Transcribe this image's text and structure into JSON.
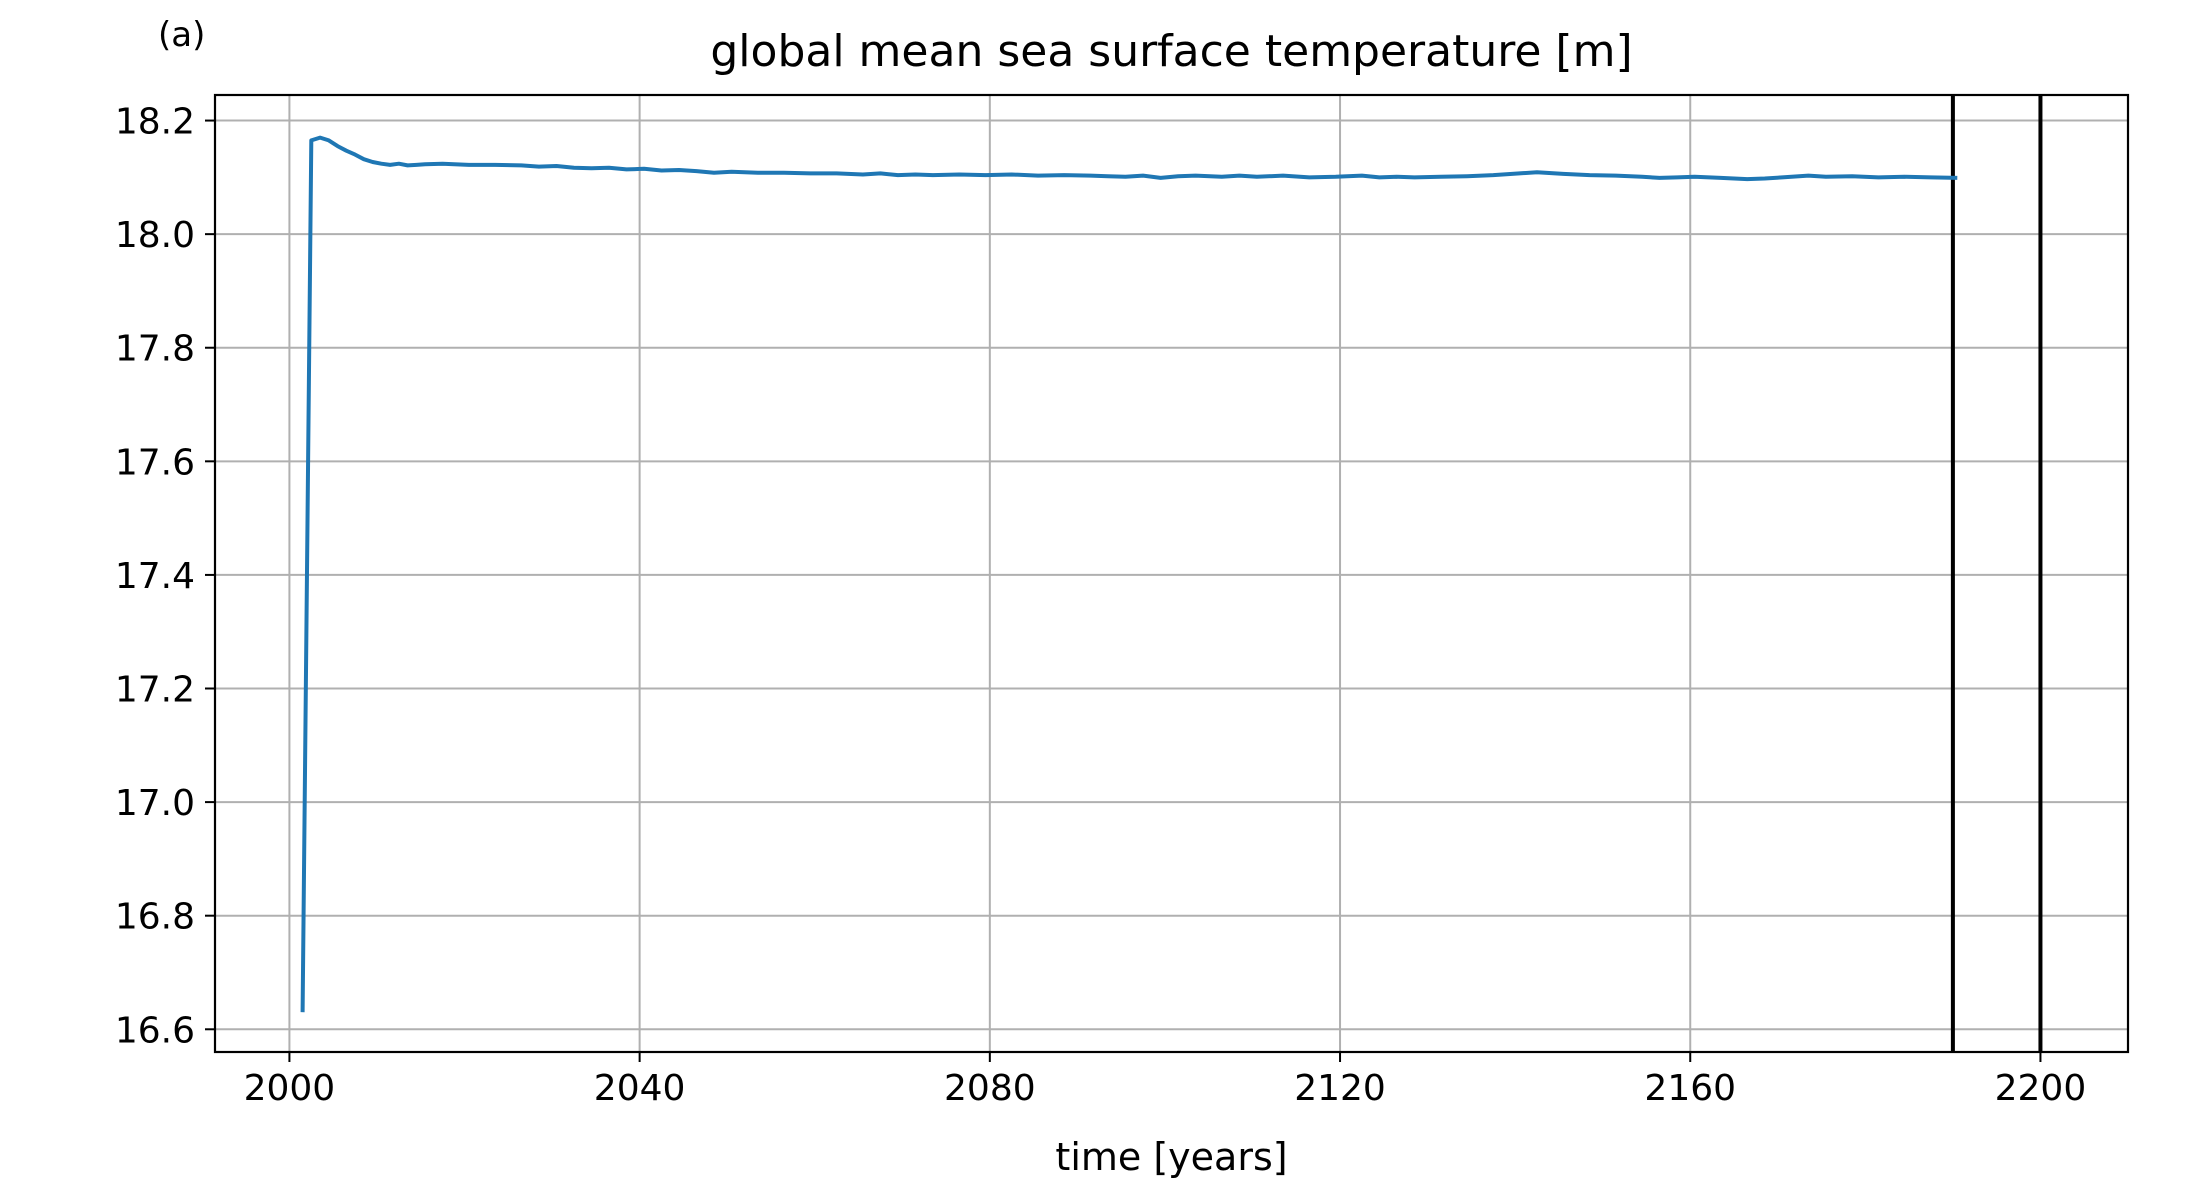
{
  "panel_label": "(a)",
  "chart_data": {
    "type": "line",
    "title": "global mean sea surface temperature [m]",
    "xlabel": "time [years]",
    "ylabel": "",
    "xlim": [
      1991.5,
      2210
    ],
    "ylim": [
      16.56,
      18.245
    ],
    "xticks": [
      2000,
      2040,
      2080,
      2120,
      2160,
      2200
    ],
    "yticks": [
      16.6,
      16.8,
      17.0,
      17.2,
      17.4,
      17.6,
      17.8,
      18.0,
      18.2
    ],
    "ytick_labels": [
      "16.6",
      "16.8",
      "17.0",
      "17.2",
      "17.4",
      "17.6",
      "17.8",
      "18.0",
      "18.2"
    ],
    "grid": true,
    "colors": {
      "series": "#1f77b4",
      "vlines": "#000000",
      "grid": "#b0b0b0"
    },
    "vlines": [
      2190,
      2200
    ],
    "series": [
      {
        "name": "",
        "x": [
          2001.5,
          2002.5,
          2003.5,
          2004.5,
          2005.5,
          2006.5,
          2007.5,
          2008.5,
          2009.5,
          2010.5,
          2011.5,
          2012.5,
          2013.5,
          2014.5,
          2015.5,
          2017.5,
          2020.5,
          2023.5,
          2026.5,
          2028.5,
          2030.5,
          2032.5,
          2034.5,
          2036.5,
          2038.5,
          2040.5,
          2042.5,
          2044.5,
          2046.5,
          2048.5,
          2050.5,
          2053.5,
          2056.5,
          2059.5,
          2062.5,
          2065.5,
          2067.5,
          2069.5,
          2071.5,
          2073.5,
          2076.5,
          2079.5,
          2082.5,
          2085.5,
          2088.5,
          2091.5,
          2093.5,
          2095.5,
          2097.5,
          2099.5,
          2101.5,
          2103.5,
          2106.5,
          2108.5,
          2110.5,
          2113.5,
          2116.5,
          2119.5,
          2122.5,
          2124.5,
          2126.5,
          2128.5,
          2131.5,
          2134.5,
          2137.5,
          2140.5,
          2142.5,
          2145.5,
          2148.5,
          2151.5,
          2154.5,
          2156.5,
          2158.5,
          2160.5,
          2163.5,
          2166.5,
          2168.5,
          2170.5,
          2173.5,
          2175.5,
          2178.5,
          2181.5,
          2184.5,
          2187.5,
          2190.5
        ],
        "values": [
          16.63,
          18.165,
          18.17,
          18.165,
          18.155,
          18.147,
          18.14,
          18.132,
          18.127,
          18.124,
          18.122,
          18.124,
          18.121,
          18.122,
          18.123,
          18.124,
          18.122,
          18.122,
          18.121,
          18.119,
          18.12,
          18.117,
          18.116,
          18.117,
          18.114,
          18.115,
          18.112,
          18.113,
          18.111,
          18.108,
          18.11,
          18.108,
          18.108,
          18.107,
          18.107,
          18.105,
          18.107,
          18.104,
          18.105,
          18.104,
          18.105,
          18.104,
          18.105,
          18.103,
          18.104,
          18.103,
          18.102,
          18.101,
          18.103,
          18.099,
          18.102,
          18.103,
          18.101,
          18.103,
          18.101,
          18.103,
          18.1,
          18.101,
          18.103,
          18.1,
          18.101,
          18.1,
          18.101,
          18.102,
          18.104,
          18.107,
          18.109,
          18.106,
          18.104,
          18.103,
          18.101,
          18.099,
          18.1,
          18.101,
          18.099,
          18.097,
          18.098,
          18.1,
          18.103,
          18.101,
          18.102,
          18.1,
          18.101,
          18.1,
          18.099
        ]
      }
    ]
  }
}
